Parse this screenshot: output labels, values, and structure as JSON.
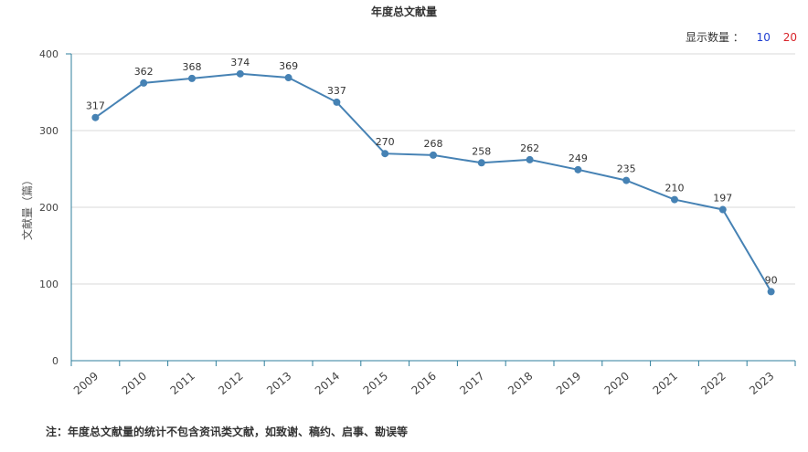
{
  "chart_data": {
    "type": "line",
    "title": "年度总文献量",
    "xlabel": "",
    "ylabel": "文献量（篇）",
    "categories": [
      "2009",
      "2010",
      "2011",
      "2012",
      "2013",
      "2014",
      "2015",
      "2016",
      "2017",
      "2018",
      "2019",
      "2020",
      "2021",
      "2022",
      "2023"
    ],
    "values": [
      317,
      362,
      368,
      374,
      369,
      337,
      270,
      268,
      258,
      262,
      249,
      235,
      210,
      197,
      90
    ],
    "ylim": [
      0,
      400
    ],
    "yticks": [
      0,
      100,
      200,
      300,
      400
    ],
    "grid": true,
    "line_color": "#4682b4"
  },
  "controls": {
    "count_label": "显示数量 ：",
    "options": [
      "10",
      "20"
    ]
  },
  "footnote": "注：年度总文献量的统计不包含资讯类文献，如致谢、稿约、启事、勘误等"
}
